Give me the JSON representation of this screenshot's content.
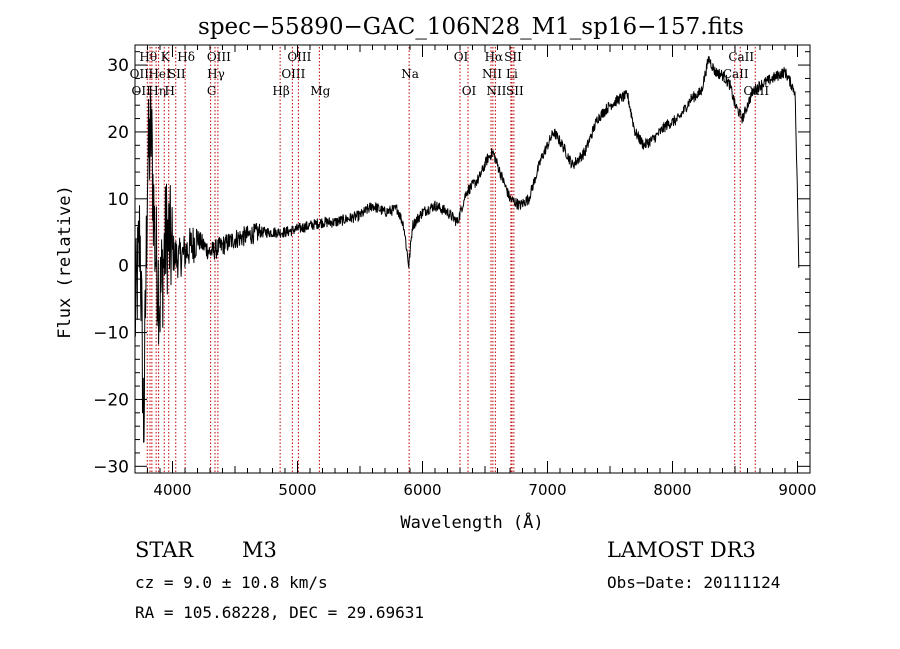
{
  "chart_data": {
    "type": "line",
    "title": "spec−55890−GAC_106N28_M1_sp16−157.fits",
    "xlabel": "Wavelength (Å)",
    "ylabel": "Flux (relative)",
    "xlim": [
      3700,
      9100
    ],
    "ylim": [
      -31,
      33
    ],
    "xticks": [
      4000,
      5000,
      6000,
      7000,
      8000,
      9000
    ],
    "yticks": [
      -30,
      -20,
      -10,
      0,
      10,
      20,
      30
    ],
    "tick_labels_x": [
      "4000",
      "5000",
      "6000",
      "7000",
      "8000",
      "9000"
    ],
    "tick_labels_y": [
      "−30",
      "−20",
      "−10",
      "0",
      "10",
      "20",
      "30"
    ],
    "series": [
      {
        "name": "flux",
        "anchors": [
          [
            3700,
            -8
          ],
          [
            3740,
            5
          ],
          [
            3770,
            -25
          ],
          [
            3800,
            15
          ],
          [
            3830,
            20
          ],
          [
            3860,
            3
          ],
          [
            3900,
            -5
          ],
          [
            3950,
            5
          ],
          [
            4000,
            2
          ],
          [
            4050,
            1
          ],
          [
            4100,
            2
          ],
          [
            4150,
            3
          ],
          [
            4200,
            4
          ],
          [
            4300,
            2
          ],
          [
            4400,
            3
          ],
          [
            4500,
            4
          ],
          [
            4600,
            4.5
          ],
          [
            4700,
            5
          ],
          [
            4800,
            5
          ],
          [
            4900,
            5
          ],
          [
            5000,
            5.5
          ],
          [
            5100,
            6
          ],
          [
            5200,
            6.5
          ],
          [
            5300,
            6.5
          ],
          [
            5400,
            7
          ],
          [
            5500,
            7.5
          ],
          [
            5600,
            9
          ],
          [
            5700,
            8
          ],
          [
            5800,
            8.5
          ],
          [
            5850,
            6
          ],
          [
            5890,
            0
          ],
          [
            5920,
            6
          ],
          [
            6000,
            8
          ],
          [
            6100,
            9
          ],
          [
            6200,
            8
          ],
          [
            6280,
            6.5
          ],
          [
            6350,
            11
          ],
          [
            6450,
            13
          ],
          [
            6520,
            16
          ],
          [
            6563,
            17
          ],
          [
            6620,
            14
          ],
          [
            6700,
            10
          ],
          [
            6780,
            9
          ],
          [
            6850,
            10
          ],
          [
            6950,
            16
          ],
          [
            7050,
            20
          ],
          [
            7120,
            18
          ],
          [
            7200,
            15
          ],
          [
            7300,
            17
          ],
          [
            7400,
            22
          ],
          [
            7500,
            24
          ],
          [
            7580,
            25
          ],
          [
            7640,
            25.5
          ],
          [
            7700,
            20
          ],
          [
            7770,
            18
          ],
          [
            7850,
            19
          ],
          [
            7950,
            21
          ],
          [
            8050,
            22
          ],
          [
            8150,
            25
          ],
          [
            8230,
            26
          ],
          [
            8290,
            31
          ],
          [
            8340,
            29
          ],
          [
            8400,
            28.5
          ],
          [
            8460,
            27
          ],
          [
            8500,
            24
          ],
          [
            8560,
            22
          ],
          [
            8640,
            26
          ],
          [
            8700,
            27
          ],
          [
            8800,
            28
          ],
          [
            8900,
            29
          ],
          [
            8980,
            26
          ],
          [
            9000,
            10
          ],
          [
            9010,
            0
          ]
        ]
      }
    ],
    "annotations": [
      {
        "label": "Na",
        "row": 2
      },
      {
        "label": "OI",
        "row": 1
      }
    ],
    "line_markers": [
      {
        "wavelength": 3798,
        "label": "Hθ",
        "row": 1,
        "side": "right"
      },
      {
        "wavelength": 3820,
        "label": "OII",
        "row": 2,
        "side": "left"
      },
      {
        "wavelength": 3835,
        "label": "OII",
        "row": 3,
        "side": "left"
      },
      {
        "wavelength": 3869,
        "label": "Hη",
        "row": 3,
        "side": "right"
      },
      {
        "wavelength": 3889,
        "label": "HeI",
        "row": 2,
        "side": "right"
      },
      {
        "wavelength": 3934,
        "label": "K",
        "row": 1,
        "side": "right"
      },
      {
        "wavelength": 3970,
        "label": "H",
        "row": 3,
        "side": "right"
      },
      {
        "wavelength": 4026,
        "label": "SII",
        "row": 2,
        "side": "right"
      },
      {
        "wavelength": 4101,
        "label": "Hδ",
        "row": 1,
        "side": "right"
      },
      {
        "wavelength": 4305,
        "label": "G",
        "row": 3,
        "side": "right"
      },
      {
        "wavelength": 4340,
        "label": "Hγ",
        "row": 2,
        "side": "right"
      },
      {
        "wavelength": 4363,
        "label": "OIII",
        "row": 1,
        "side": "right"
      },
      {
        "wavelength": 4861,
        "label": "Hβ",
        "row": 3,
        "side": "right"
      },
      {
        "wavelength": 4959,
        "label": "OIII",
        "row": 2,
        "side": "right"
      },
      {
        "wavelength": 5007,
        "label": "OIII",
        "row": 1,
        "side": "right"
      },
      {
        "wavelength": 5175,
        "label": "Mg",
        "row": 3,
        "side": "right"
      },
      {
        "wavelength": 5893,
        "label": "Na",
        "row": 2,
        "side": "right"
      },
      {
        "wavelength": 6300,
        "label": "OI",
        "row": 1,
        "side": "right"
      },
      {
        "wavelength": 6364,
        "label": "OI",
        "row": 3,
        "side": "right"
      },
      {
        "wavelength": 6548,
        "label": "NII",
        "row": 2,
        "side": "right"
      },
      {
        "wavelength": 6563,
        "label": "Hα",
        "row": 1,
        "side": "right"
      },
      {
        "wavelength": 6583,
        "label": "NII",
        "row": 3,
        "side": "right"
      },
      {
        "wavelength": 6707,
        "label": "Li",
        "row": 2,
        "side": "right"
      },
      {
        "wavelength": 6716,
        "label": "SII",
        "row": 1,
        "side": "right"
      },
      {
        "wavelength": 6731,
        "label": "SII",
        "row": 3,
        "side": "right"
      },
      {
        "wavelength": 8498,
        "label": "CaII",
        "row": 2,
        "side": "right"
      },
      {
        "wavelength": 8542,
        "label": "CaII",
        "row": 1,
        "side": "right"
      },
      {
        "wavelength": 8662,
        "label": "CaII",
        "row": 3,
        "side": "right"
      }
    ]
  },
  "info": {
    "object_class": "STAR",
    "subclass": "M3",
    "survey": "LAMOST DR3",
    "redshift": "cz = 9.0 ± 10.8 km/s",
    "obs_date": "Obs−Date: 20111124",
    "coords": "RA = 105.68228, DEC =  29.69631"
  }
}
